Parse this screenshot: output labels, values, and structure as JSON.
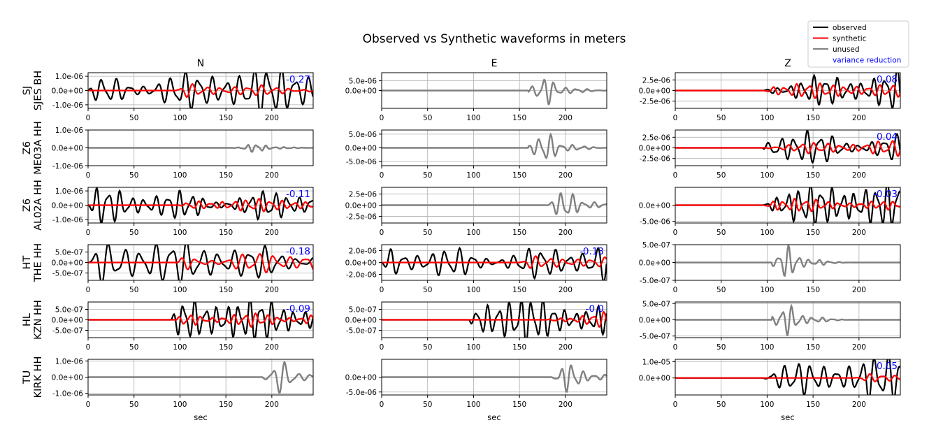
{
  "chart_data": {
    "type": "line",
    "title": "Observed vs Synthetic waveforms in meters",
    "columns": [
      "N",
      "E",
      "Z"
    ],
    "xlabel": "sec",
    "xlim": [
      0,
      245
    ],
    "xticks": [
      0,
      50,
      100,
      150,
      200
    ],
    "grid": true,
    "legend": {
      "placement": "top-right",
      "entries": [
        {
          "label": "observed",
          "color": "#000000",
          "kind": "line"
        },
        {
          "label": "synthetic",
          "color": "#ff0000",
          "kind": "line"
        },
        {
          "label": "unused",
          "color": "#808080",
          "kind": "line"
        },
        {
          "label": "variance reduction",
          "color": "#0000ff",
          "kind": "text"
        }
      ]
    },
    "stations": [
      {
        "network": "SJ",
        "station": "SJES BH"
      },
      {
        "network": "Z6",
        "station": "ME03A HH"
      },
      {
        "network": "Z6",
        "station": "AL02A HH"
      },
      {
        "network": "HT",
        "station": "THE HH"
      },
      {
        "network": "HL",
        "station": "KZN HH"
      },
      {
        "network": "TU",
        "station": "KIRK HH"
      }
    ],
    "panels": [
      [
        {
          "ylim": [
            -1.25e-06,
            1.25e-06
          ],
          "yticks": [
            "1.0e-06",
            "0.0e+00",
            "-1.0e-06"
          ],
          "ytick_values": [
            1e-06,
            0,
            -1e-06
          ],
          "used": true,
          "vr": "-0.27",
          "amp": 1.2e-06,
          "start": 0,
          "period": 15,
          "syn_amp": 3.5e-07,
          "syn_start": 95,
          "seed": 3
        },
        {
          "ylim": [
            -1e-06,
            1e-06
          ],
          "yticks": [
            "1.0e-06",
            "0.0e+00",
            "-1.0e-06"
          ],
          "ytick_values": [
            1e-06,
            0,
            -1e-06
          ],
          "used": false,
          "vr": "",
          "amp": 2.6e-07,
          "start": 95,
          "period": 10,
          "burst_center": 182,
          "seed": 5
        },
        {
          "ylim": [
            -1.25e-06,
            1.25e-06
          ],
          "yticks": [
            "1.0e-06",
            "0.0e+00",
            "-1.0e-06"
          ],
          "ytick_values": [
            1e-06,
            0,
            -1e-06
          ],
          "used": true,
          "vr": "-0.11",
          "amp": 1.1e-06,
          "start": 0,
          "period": 13,
          "syn_amp": 3e-07,
          "syn_start": 100,
          "seed": 7
        },
        {
          "ylim": [
            -8.5e-07,
            8.5e-07
          ],
          "yticks": [
            "5.0e-07",
            "0.0e+00",
            "-5.0e-07"
          ],
          "ytick_values": [
            5e-07,
            0,
            -5e-07
          ],
          "used": true,
          "vr": "-0.18",
          "amp": 7.5e-07,
          "start": 0,
          "period": 17,
          "syn_amp": 5e-07,
          "syn_start": 95,
          "seed": 11
        },
        {
          "ylim": [
            -8.5e-07,
            8.5e-07
          ],
          "yticks": [
            "5.0e-07",
            "0.0e+00",
            "-5.0e-07"
          ],
          "ytick_values": [
            5e-07,
            0,
            -5e-07
          ],
          "used": true,
          "vr": "-0.09",
          "amp": 7.5e-07,
          "start": 90,
          "period": 12,
          "syn_amp": 4e-07,
          "syn_start": 95,
          "seed": 13
        },
        {
          "ylim": [
            -1.1e-06,
            1.1e-06
          ],
          "yticks": [
            "1.0e-06",
            "0.0e+00",
            "-1.0e-06"
          ],
          "ytick_values": [
            1e-06,
            0,
            -1e-06
          ],
          "used": false,
          "vr": "",
          "amp": 1.05e-06,
          "start": 190,
          "period": 14,
          "burst_center": 210,
          "seed": 17
        }
      ],
      [
        {
          "ylim": [
            -9e-06,
            9e-06
          ],
          "yticks": [
            "5.0e-06",
            "0.0e+00"
          ],
          "ytick_values": [
            5e-06,
            0
          ],
          "used": false,
          "vr": "",
          "amp": 7.5e-06,
          "start": 160,
          "period": 12,
          "burst_center": 178,
          "seed": 19
        },
        {
          "ylim": [
            -6.5e-06,
            6.5e-06
          ],
          "yticks": [
            "5.0e-06",
            "0.0e+00",
            "-5.0e-06"
          ],
          "ytick_values": [
            5e-06,
            0,
            -5e-06
          ],
          "used": false,
          "vr": "",
          "amp": 6e-06,
          "start": 160,
          "period": 12,
          "burst_center": 178,
          "seed": 23
        },
        {
          "ylim": [
            -4e-06,
            4e-06
          ],
          "yticks": [
            "2.5e-06",
            "0.0e+00",
            "-2.5e-06"
          ],
          "ytick_values": [
            2.5e-06,
            0,
            -2.5e-06
          ],
          "used": false,
          "vr": "",
          "amp": 3.8e-06,
          "start": 180,
          "period": 12,
          "burst_center": 200,
          "seed": 29
        },
        {
          "ylim": [
            -3e-06,
            3e-06
          ],
          "yticks": [
            "2.0e-06",
            "0.0e+00",
            "-2.0e-06"
          ],
          "ytick_values": [
            2e-06,
            0,
            -2e-06
          ],
          "used": true,
          "vr": "-0.13",
          "amp": 2.8e-06,
          "start": 0,
          "period": 15,
          "syn_amp": 7e-07,
          "syn_start": 150,
          "seed": 31
        },
        {
          "ylim": [
            -8.5e-07,
            8.5e-07
          ],
          "yticks": [
            "5.0e-07",
            "0.0e+00",
            "-5.0e-07"
          ],
          "ytick_values": [
            5e-07,
            0,
            -5e-07
          ],
          "used": true,
          "vr": "-0.0",
          "amp": 8e-07,
          "start": 95,
          "period": 12,
          "syn_amp": 3.5e-07,
          "syn_start": 180,
          "seed": 37
        },
        {
          "ylim": [
            -6e-06,
            6e-06
          ],
          "yticks": [
            "0.0e+00",
            "-5.0e-06"
          ],
          "ytick_values": [
            0,
            -5e-06
          ],
          "used": false,
          "vr": "",
          "amp": 5.5e-06,
          "start": 185,
          "period": 12,
          "burst_center": 205,
          "seed": 41
        }
      ],
      [
        {
          "ylim": [
            -4.2e-06,
            4.2e-06
          ],
          "yticks": [
            "2.5e-06",
            "0.0e+00",
            "-2.5e-06"
          ],
          "ytick_values": [
            2.5e-06,
            0,
            -2.5e-06
          ],
          "used": true,
          "vr": "0.08",
          "amp": 3.8e-06,
          "start": 95,
          "period": 13,
          "syn_amp": 1.2e-06,
          "syn_start": 95,
          "seed": 43
        },
        {
          "ylim": [
            -4.2e-06,
            4.2e-06
          ],
          "yticks": [
            "2.5e-06",
            "0.0e+00",
            "-2.5e-06"
          ],
          "ytick_values": [
            2.5e-06,
            0,
            -2.5e-06
          ],
          "used": true,
          "vr": "0.04",
          "amp": 3.8e-06,
          "start": 95,
          "period": 14,
          "syn_amp": 1.3e-06,
          "syn_start": 95,
          "seed": 47
        },
        {
          "ylim": [
            -5.5e-06,
            5.5e-06
          ],
          "yticks": [
            "0.0e+00",
            "-5.0e-06"
          ],
          "ytick_values": [
            0,
            -5e-06
          ],
          "used": true,
          "vr": "-0.03",
          "amp": 5e-06,
          "start": 95,
          "period": 12,
          "syn_amp": 1.5e-06,
          "syn_start": 95,
          "seed": 53
        },
        {
          "ylim": [
            -5e-07,
            5e-07
          ],
          "yticks": [
            "5.0e-07",
            "0.0e+00",
            "-5.0e-07"
          ],
          "ytick_values": [
            5e-07,
            0,
            -5e-07
          ],
          "used": false,
          "vr": "",
          "amp": 4.8e-07,
          "start": 105,
          "period": 11,
          "burst_center": 122,
          "seed": 59
        },
        {
          "ylim": [
            -5.5e-07,
            5.5e-07
          ],
          "yticks": [
            "5.0e-07",
            "0.0e+00",
            "-5.0e-07"
          ],
          "ytick_values": [
            5e-07,
            0,
            -5e-07
          ],
          "used": false,
          "vr": "",
          "amp": 5e-07,
          "start": 105,
          "period": 11,
          "burst_center": 122,
          "seed": 61
        },
        {
          "ylim": [
            -1.05e-05,
            1.15e-05
          ],
          "yticks": [
            "1.0e-05",
            "0.0e+00"
          ],
          "ytick_values": [
            1e-05,
            0
          ],
          "used": true,
          "vr": "0.05",
          "amp": 1.05e-05,
          "start": 95,
          "period": 14,
          "syn_amp": 2e-06,
          "syn_start": 195,
          "seed": 67
        }
      ]
    ]
  }
}
